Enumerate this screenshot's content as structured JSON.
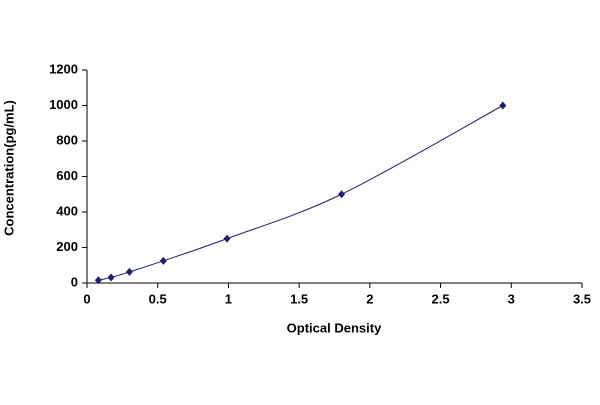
{
  "chart_data": {
    "type": "scatter",
    "x_label": "Optical Density",
    "y_label": "Concentration(pg/mL)",
    "x": [
      0.08,
      0.17,
      0.3,
      0.54,
      0.99,
      1.8,
      2.94
    ],
    "series": [
      {
        "color": "#1f1f6f",
        "values": [
          15.6,
          31.25,
          62.5,
          125,
          250,
          500,
          1000
        ]
      }
    ],
    "xlim": [
      0,
      3.5
    ],
    "xticks": [
      0,
      0.5,
      1,
      1.5,
      2,
      2.5,
      3,
      3.5
    ],
    "ylim": [
      0,
      1200
    ],
    "yticks": [
      0,
      200,
      400,
      600,
      800,
      1000,
      1200
    ],
    "grid": false
  }
}
